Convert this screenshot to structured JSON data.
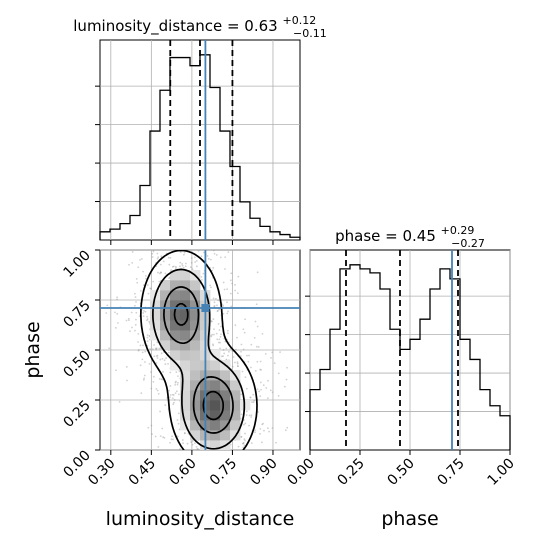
{
  "figure": {
    "type": "corner_plot",
    "truth_color": "#4682b4"
  },
  "chart_data": [
    {
      "type": "histogram",
      "panel": "top-left",
      "title": {
        "prefix": "luminosity_distance = 0.63",
        "sup": "+0.12",
        "sub": "−0.11"
      },
      "parameter": "luminosity_distance",
      "xlim": [
        0.26,
        1.0
      ],
      "bin_edges": [
        0.26,
        0.297,
        0.334,
        0.371,
        0.408,
        0.445,
        0.482,
        0.519,
        0.556,
        0.593,
        0.63,
        0.667,
        0.704,
        0.741,
        0.778,
        0.815,
        0.852,
        0.889,
        0.926,
        0.963,
        1.0
      ],
      "counts": [
        3,
        4,
        6,
        9,
        20,
        40,
        55,
        67,
        67,
        64,
        68,
        56,
        40,
        27,
        14,
        8,
        5,
        3,
        2,
        1
      ],
      "quantiles": [
        0.52,
        0.63,
        0.75
      ],
      "truth": 0.65,
      "grid": true
    },
    {
      "type": "histogram",
      "panel": "bottom-right",
      "title": {
        "prefix": "phase = 0.45",
        "sup": "+0.29",
        "sub": "−0.27"
      },
      "parameter": "phase",
      "xlabel": "phase",
      "xlim": [
        0.0,
        1.0
      ],
      "xticks": [
        "0.00",
        "0.25",
        "0.50",
        "0.75",
        "1.00"
      ],
      "bin_edges": [
        0.0,
        0.05,
        0.1,
        0.15,
        0.2,
        0.25,
        0.3,
        0.35,
        0.4,
        0.45,
        0.5,
        0.55,
        0.6,
        0.65,
        0.7,
        0.75,
        0.8,
        0.85,
        0.9,
        0.95,
        1.0
      ],
      "counts": [
        30,
        40,
        60,
        90,
        92,
        90,
        88,
        80,
        60,
        50,
        55,
        65,
        80,
        90,
        85,
        55,
        45,
        30,
        22,
        17
      ],
      "quantiles": [
        0.18,
        0.45,
        0.74
      ],
      "truth": 0.71,
      "grid": true
    },
    {
      "type": "2d_density",
      "panel": "bottom-left",
      "xlabel": "luminosity_distance",
      "ylabel": "phase",
      "xlim": [
        0.26,
        1.0
      ],
      "ylim": [
        0.0,
        1.0
      ],
      "xticks": [
        "0.30",
        "0.45",
        "0.60",
        "0.75",
        "0.90"
      ],
      "yticks": [
        "0.00",
        "0.25",
        "0.50",
        "0.75",
        "1.00"
      ],
      "truth": [
        0.65,
        0.71
      ],
      "modes": [
        {
          "x": 0.56,
          "y": 0.68
        },
        {
          "x": 0.68,
          "y": 0.22
        }
      ],
      "grid": true
    }
  ]
}
